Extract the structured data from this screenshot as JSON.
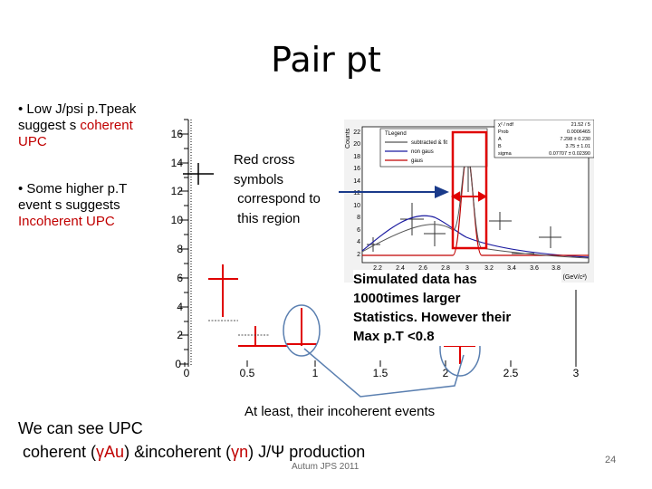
{
  "slide": {
    "title": "Pair pt",
    "page_number": "24",
    "footer": "Autum JPS 2011"
  },
  "bullets": [
    {
      "prefix": "• Low J/psi p.Tpeak suggest s ",
      "highlight": "coherent UPC"
    },
    {
      "prefix": "• Some higher p.T event s suggests ",
      "highlight": "Incoherent UPC"
    }
  ],
  "callout": {
    "lines": [
      "Red cross",
      "symbols",
      " correspond to",
      " this region"
    ]
  },
  "notes": {
    "simulated": [
      "Simulated data has",
      "1000times larger",
      "Statistics. However their",
      "Max p.T <0.8"
    ],
    "incoherent": "At least, their incoherent events"
  },
  "conclusion": {
    "line1": "We can see  UPC",
    "line2_a": " coherent (",
    "line2_b": "γAu",
    "line2_c": ") &incoherent (",
    "line2_d": "γn",
    "line2_e": ") J/Ψ production"
  },
  "colors": {
    "highlight_red": "#c00000",
    "cross_red": "#e00000"
  },
  "main_plot": {
    "y_ticks": [
      "16",
      "14",
      "12",
      "10",
      "8",
      "6",
      "4",
      "2",
      "0"
    ],
    "x_ticks": [
      "0",
      "0.5",
      "1",
      "1.5",
      "2",
      "2.5",
      "3"
    ]
  },
  "inset": {
    "yaxis_label": "Counts",
    "xaxis_label": "mass (GeV/c²)",
    "y_ticks": [
      "22",
      "20",
      "18",
      "16",
      "14",
      "12",
      "10",
      "8",
      "6",
      "4",
      "2"
    ],
    "x_ticks": [
      "2.2",
      "2.4",
      "2.6",
      "2.8",
      "3",
      "3.2",
      "3.4",
      "3.6",
      "3.8"
    ],
    "legend": {
      "title": "TLegend",
      "entries": [
        {
          "label": "subtracted & fit",
          "color": "#555555"
        },
        {
          "label": "non gaus",
          "color": "#1a1aa0"
        },
        {
          "label": "gaus",
          "color": "#c00000"
        }
      ]
    },
    "stats": [
      {
        "name": "χ² / ndf",
        "value": "21.52 / 5"
      },
      {
        "name": "Prob",
        "value": "0.0006465"
      },
      {
        "name": "A",
        "value": "7.298 ± 0.230"
      },
      {
        "name": "B",
        "value": "3.75 ± 1.01"
      },
      {
        "name": "sigma",
        "value": "0.07707 ± 0.02390"
      }
    ]
  }
}
